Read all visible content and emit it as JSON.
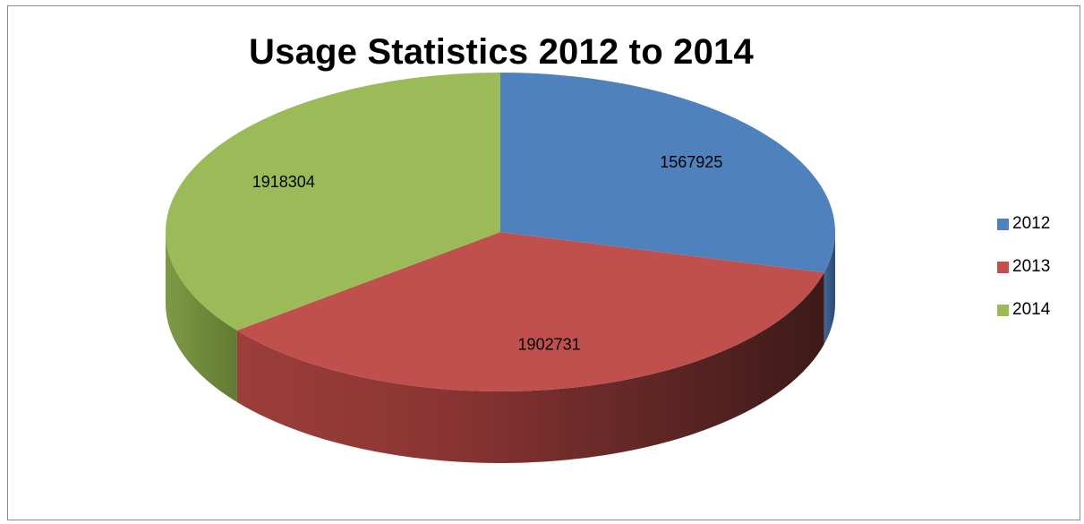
{
  "chart_data": {
    "type": "pie",
    "title": "Usage Statistics 2012 to 2014",
    "categories": [
      "2012",
      "2013",
      "2014"
    ],
    "values": [
      1567925,
      1902731,
      1918304
    ],
    "data_labels": [
      "1567925",
      "1902731",
      "1918304"
    ],
    "colors": [
      "#4f81bd",
      "#c0504d",
      "#9bbb59"
    ],
    "style": "3d",
    "legend_position": "right"
  }
}
